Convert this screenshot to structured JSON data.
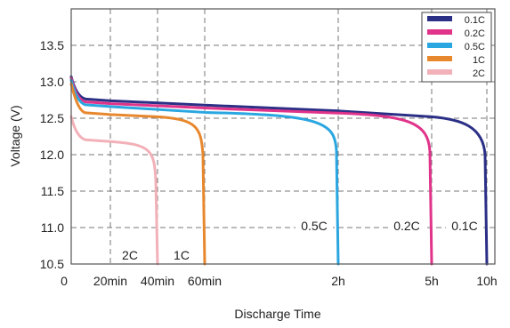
{
  "chart_data": {
    "type": "line",
    "title": "",
    "xlabel": "Discharge Time",
    "ylabel": "Voltage (V)",
    "ylim": [
      10.5,
      14.0
    ],
    "grid": true,
    "legend_placement": "top-right",
    "yticks": [
      {
        "label": "10.5",
        "value": 10.5
      },
      {
        "label": "11.0",
        "value": 11.0
      },
      {
        "label": "11.5",
        "value": 11.5
      },
      {
        "label": "12.0",
        "value": 12.0
      },
      {
        "label": "12.5",
        "value": 12.5
      },
      {
        "label": "13.0",
        "value": 13.0
      },
      {
        "label": "13.5",
        "value": 13.5
      }
    ],
    "xticks": [
      "0",
      "20min",
      "40min",
      "60min",
      "2h",
      "5h",
      "10h"
    ],
    "series": [
      {
        "name": "0.1C",
        "color": "#2b2f86",
        "x": [
          "0",
          "20min",
          "40min",
          "60min",
          "2h",
          "5h",
          "10h"
        ],
        "values": [
          12.9,
          12.74,
          12.71,
          12.68,
          12.6,
          12.52,
          10.5
        ]
      },
      {
        "name": "0.2C",
        "color": "#e0338a",
        "x": [
          "0",
          "20min",
          "40min",
          "60min",
          "2h",
          "5h"
        ],
        "values": [
          12.88,
          12.7,
          12.67,
          12.64,
          12.57,
          10.5
        ]
      },
      {
        "name": "0.5C",
        "color": "#2aa6e0",
        "x": [
          "0",
          "20min",
          "40min",
          "60min",
          "2h"
        ],
        "values": [
          12.85,
          12.66,
          12.62,
          12.58,
          10.5
        ]
      },
      {
        "name": "1C",
        "color": "#e8882e",
        "x": [
          "0",
          "20min",
          "40min",
          "60min"
        ],
        "values": [
          12.8,
          12.55,
          12.52,
          10.5
        ]
      },
      {
        "name": "2C",
        "color": "#f2b0b8",
        "x": [
          "0",
          "20min",
          "40min"
        ],
        "values": [
          12.35,
          12.18,
          10.5
        ]
      }
    ],
    "annotations": [
      "2C",
      "1C",
      "0.5C",
      "0.2C",
      "0.1C"
    ]
  }
}
